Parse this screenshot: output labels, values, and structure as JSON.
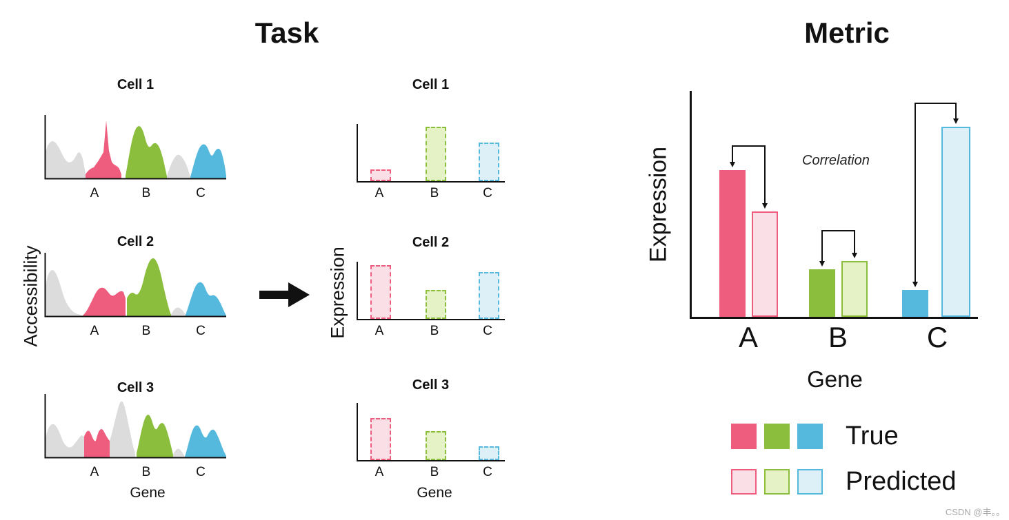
{
  "titles": {
    "task": "Task",
    "metric": "Metric"
  },
  "task": {
    "accessibility_axis_label": "Accessibility",
    "expression_axis_label": "Expression",
    "gene_axis_label": "Gene",
    "cells": [
      "Cell 1",
      "Cell 2",
      "Cell 3"
    ],
    "genes": [
      "A",
      "B",
      "C"
    ]
  },
  "metric": {
    "ylabel": "Expression",
    "xlabel": "Gene",
    "annotation": "Correlation",
    "genes": [
      "A",
      "B",
      "C"
    ],
    "legend": {
      "true_label": "True",
      "predicted_label": "Predicted"
    }
  },
  "colors": {
    "pink": "#EF5D7E",
    "pink-light": "#FADFE6",
    "green": "#8BBE3D",
    "green-light": "#E4F2C6",
    "blue": "#55B9DD",
    "blue-light": "#DDF0F8",
    "gray": "#DCDCDC",
    "ink": "#111111"
  },
  "chart_data": [
    {
      "type": "bar",
      "title": "Cell 1 predicted expression",
      "categories": [
        "A",
        "B",
        "C"
      ],
      "values": [
        0.2,
        0.95,
        0.68
      ],
      "xlabel": "Gene",
      "ylabel": "Expression",
      "ylim": [
        0,
        1
      ]
    },
    {
      "type": "bar",
      "title": "Cell 2 predicted expression",
      "categories": [
        "A",
        "B",
        "C"
      ],
      "values": [
        0.94,
        0.5,
        0.82
      ],
      "xlabel": "Gene",
      "ylabel": "Expression",
      "ylim": [
        0,
        1
      ]
    },
    {
      "type": "bar",
      "title": "Cell 3 predicted expression",
      "categories": [
        "A",
        "B",
        "C"
      ],
      "values": [
        0.73,
        0.5,
        0.24
      ],
      "xlabel": "Gene",
      "ylabel": "Expression",
      "ylim": [
        0,
        1
      ]
    },
    {
      "type": "bar",
      "title": "Metric: correlation of true vs predicted expression",
      "categories": [
        "A",
        "B",
        "C"
      ],
      "series": [
        {
          "name": "True",
          "values": [
            0.71,
            0.23,
            0.13
          ]
        },
        {
          "name": "Predicted",
          "values": [
            0.51,
            0.27,
            0.92
          ]
        }
      ],
      "xlabel": "Gene",
      "ylabel": "Expression",
      "ylim": [
        0,
        1
      ],
      "legend_position": "below",
      "annotation": "Correlation"
    }
  ],
  "watermark": "CSDN @丰。。"
}
